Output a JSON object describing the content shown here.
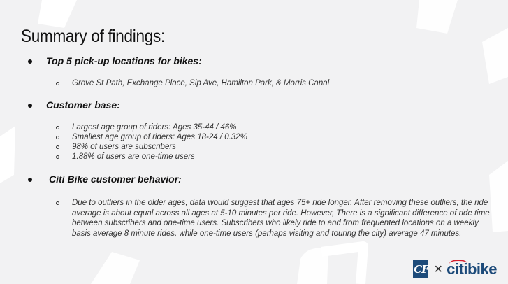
{
  "slide": {
    "title": "Summary of findings:",
    "sections": [
      {
        "heading": "Top 5 pick-up locations for bikes:",
        "items": [
          "Grove St Path, Exchange Place, Sip Ave, Hamilton Park, & Morris Canal"
        ]
      },
      {
        "heading": "Customer base:",
        "items": [
          "Largest age group of riders: Ages 35-44 / 46%",
          "Smallest age group of riders: Ages 18-24 / 0.32%",
          "98% of users are subscribers",
          "1.88% of users are one-time users"
        ]
      },
      {
        "heading": "Citi Bike customer behavior:",
        "items": [
          "Due to outliers in the older ages, data would suggest that ages 75+ ride longer. After removing these outliers, the ride average is about equal across all ages at 5-10 minutes per ride. However, There is a significant difference of ride time between subscribers and one-time users. Subscribers who likely ride to and from frequented locations on a weekly basis average 8 minute rides, while one-time users (perhaps visiting and touring the city) average 47 minutes."
        ]
      }
    ]
  },
  "logos": {
    "cf_label": "CF",
    "separator": "×",
    "brand_part1": "citi",
    "brand_part2": "bike"
  },
  "colors": {
    "background": "#f2f2f3",
    "shapes": "#ffffff",
    "cf_blue": "#1d4b7a",
    "citi_red": "#d41e2d"
  }
}
